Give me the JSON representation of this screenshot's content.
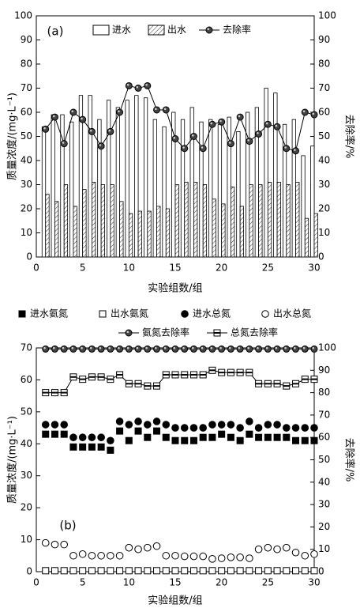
{
  "chart_data": [
    {
      "type": "bar",
      "annotation": "(a)",
      "xlabel": "实验组数/组",
      "ylabel": "质量浓度/(mg·L⁻¹)",
      "y2label": "去除率/%",
      "x": [
        1,
        2,
        3,
        4,
        5,
        6,
        7,
        8,
        9,
        10,
        11,
        12,
        13,
        14,
        15,
        16,
        17,
        18,
        19,
        20,
        21,
        22,
        23,
        24,
        25,
        26,
        27,
        28,
        29,
        30
      ],
      "xlim": [
        0,
        30
      ],
      "xticks": [
        0,
        5,
        10,
        15,
        20,
        25,
        30
      ],
      "ylim": [
        0,
        100
      ],
      "yticks": [
        0,
        10,
        20,
        30,
        40,
        50,
        60,
        70,
        80,
        90,
        100
      ],
      "y2lim": [
        0,
        100
      ],
      "y2ticks": [
        0,
        10,
        20,
        30,
        40,
        50,
        60,
        70,
        80,
        90,
        100
      ],
      "legend": "upper center",
      "series": [
        {
          "name": "进水",
          "type": "bar",
          "style": "open",
          "color": "#000000",
          "values": [
            54,
            59,
            59,
            56,
            67,
            67,
            57,
            65,
            62,
            65,
            67,
            66,
            57,
            54,
            60,
            57,
            62,
            56,
            57,
            55,
            58,
            52,
            60,
            62,
            70,
            68,
            55,
            57,
            42,
            46
          ]
        },
        {
          "name": "出水",
          "type": "bar",
          "style": "hatch",
          "color": "#000000",
          "values": [
            26,
            23,
            30,
            21,
            28,
            31,
            30,
            30,
            23,
            18,
            19,
            19,
            21,
            20,
            30,
            31,
            31,
            30,
            24,
            22,
            29,
            21,
            30,
            30,
            31,
            31,
            30,
            31,
            16,
            18
          ]
        },
        {
          "name": "去除率",
          "type": "line",
          "marker": "ball",
          "axis": "y2",
          "color": "#000000",
          "values": [
            53,
            58,
            47,
            60,
            57,
            52,
            46,
            52,
            60,
            71,
            70,
            71,
            61,
            61,
            49,
            45,
            50,
            45,
            55,
            56,
            47,
            58,
            48,
            51,
            55,
            54,
            45,
            44,
            60,
            59
          ]
        }
      ]
    },
    {
      "type": "line",
      "annotation": "(b)",
      "xlabel": "实验组数/组",
      "ylabel": "质量浓度/(mg·L⁻¹)",
      "y2label": "去除率/%",
      "x": [
        1,
        2,
        3,
        4,
        5,
        6,
        7,
        8,
        9,
        10,
        11,
        12,
        13,
        14,
        15,
        16,
        17,
        18,
        19,
        20,
        21,
        22,
        23,
        24,
        25,
        26,
        27,
        28,
        29,
        30
      ],
      "xlim": [
        0,
        30
      ],
      "xticks": [
        0,
        5,
        10,
        15,
        20,
        25,
        30
      ],
      "ylim": [
        0,
        70
      ],
      "yticks": [
        0,
        10,
        20,
        30,
        40,
        50,
        60,
        70
      ],
      "y2lim": [
        0,
        100
      ],
      "y2ticks": [
        0,
        10,
        20,
        30,
        40,
        50,
        60,
        70,
        80,
        90,
        100
      ],
      "legend": "above",
      "series": [
        {
          "name": "进水氨氮",
          "type": "scatter",
          "marker": "square-filled",
          "color": "#000000",
          "values": [
            43,
            43,
            43,
            39,
            39,
            39,
            39,
            38,
            44,
            41,
            44,
            42,
            44,
            42,
            41,
            41,
            41,
            42,
            42,
            43,
            42,
            41,
            43,
            42,
            42,
            42,
            42,
            41,
            41,
            41
          ]
        },
        {
          "name": "出水氨氮",
          "type": "scatter",
          "marker": "square-open",
          "color": "#000000",
          "values": [
            0.3,
            0.3,
            0.3,
            0.3,
            0.3,
            0.3,
            0.3,
            0.3,
            0.3,
            0.3,
            0.3,
            0.3,
            0.3,
            0.3,
            0.3,
            0.3,
            0.3,
            0.3,
            0.3,
            0.3,
            0.3,
            0.3,
            0.3,
            0.3,
            0.3,
            0.3,
            0.3,
            0.3,
            0.3,
            0.3
          ]
        },
        {
          "name": "进水总氮",
          "type": "scatter",
          "marker": "circle-filled",
          "color": "#000000",
          "values": [
            46,
            46,
            46,
            42,
            42,
            42,
            42,
            41,
            47,
            46,
            47,
            46,
            47,
            46,
            45,
            45,
            45,
            45,
            46,
            46,
            46,
            45,
            47,
            45,
            46,
            46,
            45,
            45,
            45,
            45
          ]
        },
        {
          "name": "出水总氮",
          "type": "scatter",
          "marker": "circle-open",
          "color": "#000000",
          "values": [
            9,
            8.5,
            8.5,
            5,
            5.5,
            5,
            5,
            5,
            5,
            7.5,
            7,
            7.5,
            8,
            5,
            5,
            4.8,
            4.8,
            4.8,
            4,
            4.2,
            4.5,
            4.5,
            4.2,
            7,
            7.5,
            7,
            7.5,
            6,
            5,
            5.5
          ]
        },
        {
          "name": "氨氮去除率",
          "type": "line",
          "marker": "ball",
          "axis": "y2",
          "color": "#000000",
          "values": [
            99.5,
            99.5,
            99.5,
            99.5,
            99.5,
            99.5,
            99.5,
            99.5,
            99.5,
            99.5,
            99.5,
            99.5,
            99.5,
            99.5,
            99.5,
            99.5,
            99.5,
            99.5,
            99.5,
            99.5,
            99.5,
            99.5,
            99.5,
            99.5,
            99.5,
            99.5,
            99.5,
            99.5,
            99.5,
            99.5
          ]
        },
        {
          "name": "总氮去除率",
          "type": "line",
          "marker": "square-half",
          "axis": "y2",
          "color": "#000000",
          "values": [
            80,
            80,
            80,
            87,
            86,
            87,
            87,
            86,
            88,
            84,
            84,
            83,
            83,
            88,
            88,
            88,
            88,
            88,
            90,
            89,
            89,
            89,
            89,
            84,
            84,
            84,
            83,
            84,
            86,
            86
          ]
        }
      ]
    }
  ]
}
